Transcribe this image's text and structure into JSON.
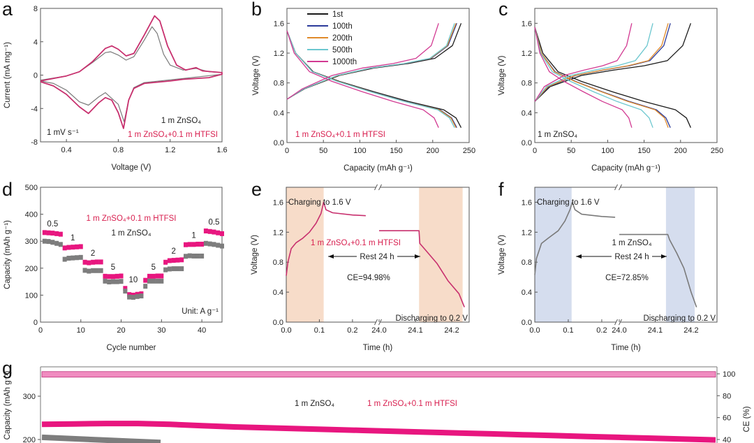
{
  "colors": {
    "htfsi_text": "#d81f4f",
    "htfsi_line": "#c8306e",
    "znso4_line": "#7a7a7a",
    "magenta": "#e8167f",
    "gray_marker": "#7d7d7d",
    "charge_shade_e": "#f7dcc9",
    "charge_shade_f": "#d5ddee"
  },
  "chart_data": [
    {
      "panel": "a",
      "type": "line",
      "xlabel": "Voltage (V)",
      "ylabel": "Current (mA mg⁻¹)",
      "xlim": [
        0.2,
        1.6
      ],
      "ylim": [
        -8,
        8
      ],
      "xticks": [
        0.4,
        0.8,
        1.2,
        1.6
      ],
      "yticks": [
        -8,
        -4,
        0,
        4,
        8
      ],
      "annotations": [
        "1 mV s⁻¹",
        "1 m ZnSO₄",
        "1 m ZnSO₄+0.1 m HTFSI"
      ],
      "series": [
        {
          "name": "1 m ZnSO₄",
          "color": "#7a7a7a",
          "points": [
            [
              0.2,
              -0.6
            ],
            [
              0.4,
              -0.1
            ],
            [
              0.5,
              0.4
            ],
            [
              0.6,
              1.5
            ],
            [
              0.7,
              2.7
            ],
            [
              0.74,
              2.8
            ],
            [
              0.8,
              2.4
            ],
            [
              0.86,
              1.8
            ],
            [
              0.92,
              2.2
            ],
            [
              1.0,
              4.2
            ],
            [
              1.06,
              5.8
            ],
            [
              1.1,
              5.0
            ],
            [
              1.15,
              2.5
            ],
            [
              1.2,
              1.2
            ],
            [
              1.3,
              0.6
            ],
            [
              1.4,
              0.8
            ],
            [
              1.5,
              0.4
            ],
            [
              1.6,
              0.3
            ],
            [
              1.6,
              0.1
            ],
            [
              1.3,
              -0.4
            ],
            [
              1.0,
              -0.9
            ],
            [
              0.92,
              -1.5
            ],
            [
              0.88,
              -3.0
            ],
            [
              0.845,
              -5.6
            ],
            [
              0.8,
              -3.5
            ],
            [
              0.7,
              -2.1
            ],
            [
              0.65,
              -2.6
            ],
            [
              0.57,
              -3.6
            ],
            [
              0.5,
              -3.2
            ],
            [
              0.4,
              -1.8
            ],
            [
              0.3,
              -1.0
            ],
            [
              0.2,
              -0.7
            ]
          ]
        },
        {
          "name": "1 m ZnSO₄+0.1 m HTFSI",
          "color": "#c8306e",
          "points": [
            [
              0.2,
              -0.7
            ],
            [
              0.3,
              -0.4
            ],
            [
              0.4,
              -0.1
            ],
            [
              0.5,
              0.4
            ],
            [
              0.6,
              1.6
            ],
            [
              0.7,
              3.2
            ],
            [
              0.75,
              3.5
            ],
            [
              0.8,
              3.1
            ],
            [
              0.86,
              2.3
            ],
            [
              0.92,
              2.6
            ],
            [
              1.0,
              4.8
            ],
            [
              1.08,
              7.1
            ],
            [
              1.12,
              6.5
            ],
            [
              1.18,
              3.5
            ],
            [
              1.25,
              1.2
            ],
            [
              1.32,
              0.6
            ],
            [
              1.4,
              0.9
            ],
            [
              1.45,
              0.5
            ],
            [
              1.6,
              0.3
            ],
            [
              1.6,
              0.1
            ],
            [
              1.5,
              -0.3
            ],
            [
              1.3,
              -0.5
            ],
            [
              1.2,
              -0.7
            ],
            [
              1.0,
              -1.0
            ],
            [
              0.92,
              -1.6
            ],
            [
              0.88,
              -3.0
            ],
            [
              0.84,
              -6.4
            ],
            [
              0.8,
              -4.5
            ],
            [
              0.75,
              -3.0
            ],
            [
              0.7,
              -2.7
            ],
            [
              0.65,
              -3.3
            ],
            [
              0.57,
              -4.6
            ],
            [
              0.5,
              -3.8
            ],
            [
              0.4,
              -2.3
            ],
            [
              0.3,
              -1.3
            ],
            [
              0.2,
              -0.8
            ]
          ]
        }
      ]
    },
    {
      "panel": "b",
      "type": "line",
      "xlabel": "Capacity (mAh g⁻¹)",
      "ylabel": "Voltage (V)",
      "xlim": [
        0,
        250
      ],
      "ylim": [
        0,
        1.8
      ],
      "xticks": [
        0,
        50,
        100,
        150,
        200,
        250
      ],
      "yticks": [
        0.0,
        0.4,
        0.8,
        1.2,
        1.6
      ],
      "legend": "top-left",
      "annotations": [
        "1 m ZnSO₄+0.1 m HTFSI"
      ],
      "charge_voltages": [
        0.58,
        0.72,
        0.9,
        1.0,
        1.06,
        1.13,
        1.3,
        1.6
      ],
      "discharge_voltages": [
        1.5,
        1.2,
        0.95,
        0.82,
        0.68,
        0.55,
        0.44,
        0.33,
        0.2
      ],
      "series": [
        {
          "name": "1st",
          "color": "#1a1a1a",
          "charge_x": [
            0,
            24,
            72,
            120,
            167,
            203,
            227,
            239
          ],
          "discharge_x": [
            0,
            12,
            36,
            72,
            120,
            167,
            215,
            232,
            239
          ]
        },
        {
          "name": "100th",
          "color": "#2b3a9a",
          "charge_x": [
            0,
            23,
            70,
            117,
            163,
            198,
            221,
            233
          ],
          "discharge_x": [
            0,
            12,
            35,
            70,
            117,
            163,
            210,
            226,
            233
          ]
        },
        {
          "name": "200th",
          "color": "#e08a2a",
          "charge_x": [
            0,
            23,
            70,
            116,
            162,
            197,
            220,
            232
          ],
          "discharge_x": [
            0,
            12,
            35,
            70,
            116,
            162,
            209,
            225,
            232
          ]
        },
        {
          "name": "500th",
          "color": "#6cc7cf",
          "charge_x": [
            0,
            23,
            69,
            115,
            161,
            196,
            219,
            230
          ],
          "discharge_x": [
            0,
            12,
            35,
            69,
            115,
            161,
            207,
            223,
            230
          ]
        },
        {
          "name": "1000th",
          "color": "#d23a92",
          "charge_x": [
            0,
            21,
            62,
            104,
            146,
            177,
            198,
            208
          ],
          "discharge_x": [
            0,
            10,
            31,
            62,
            104,
            146,
            187,
            202,
            208
          ]
        }
      ]
    },
    {
      "panel": "c",
      "type": "line",
      "xlabel": "Capacity (mAh g⁻¹)",
      "ylabel": "Voltage (V)",
      "xlim": [
        0,
        250
      ],
      "ylim": [
        0,
        1.8
      ],
      "xticks": [
        0,
        50,
        100,
        150,
        200,
        250
      ],
      "yticks": [
        0.0,
        0.4,
        0.8,
        1.2,
        1.6
      ],
      "annotations": [
        "1 m ZnSO₄"
      ],
      "charge_voltages": [
        0.55,
        0.75,
        0.9,
        0.97,
        1.03,
        1.1,
        1.3,
        1.6
      ],
      "discharge_voltages": [
        1.55,
        1.2,
        0.95,
        0.82,
        0.68,
        0.55,
        0.44,
        0.33,
        0.2
      ],
      "series": [
        {
          "color": "#1a1a1a",
          "charge_x": [
            0,
            21,
            64,
            107,
            150,
            182,
            203,
            214
          ],
          "discharge_x": [
            0,
            11,
            32,
            64,
            107,
            150,
            193,
            208,
            214
          ]
        },
        {
          "color": "#2b3a9a",
          "charge_x": [
            0,
            19,
            56,
            93,
            130,
            158,
            177,
            186
          ],
          "discharge_x": [
            0,
            9,
            28,
            56,
            93,
            130,
            167,
            180,
            186
          ]
        },
        {
          "color": "#e08a2a",
          "charge_x": [
            0,
            18,
            55,
            92,
            128,
            156,
            174,
            183
          ],
          "discharge_x": [
            0,
            9,
            27,
            55,
            92,
            128,
            165,
            178,
            183
          ]
        },
        {
          "color": "#6cc7cf",
          "charge_x": [
            0,
            16,
            49,
            81,
            113,
            138,
            154,
            162
          ],
          "discharge_x": [
            0,
            8,
            24,
            49,
            81,
            113,
            146,
            157,
            162
          ]
        },
        {
          "color": "#d23a92",
          "charge_x": [
            0,
            13,
            40,
            67,
            93,
            113,
            126,
            133
          ],
          "discharge_x": [
            0,
            7,
            20,
            40,
            67,
            93,
            120,
            129,
            133
          ]
        }
      ]
    },
    {
      "panel": "d",
      "type": "scatter",
      "xlabel": "Cycle number",
      "ylabel": "Capacity (mAh g⁻¹)",
      "xlim": [
        0,
        45
      ],
      "ylim": [
        0,
        500
      ],
      "xticks": [
        0,
        10,
        20,
        30,
        40
      ],
      "yticks": [
        0,
        100,
        200,
        300,
        400,
        500
      ],
      "annotations": [
        "1 m ZnSO₄+0.1 m HTFSI",
        "1 m ZnSO₄",
        "Unit: A g⁻¹"
      ],
      "rate_labels": [
        "0.5",
        "1",
        "2",
        "5",
        "10",
        "5",
        "2",
        "1",
        "0.5"
      ],
      "series": [
        {
          "name": "1 m ZnSO₄+0.1 m HTFSI",
          "color": "#e8167f",
          "values": [
            332,
            331,
            330,
            328,
            326,
            275,
            277,
            278,
            279,
            280,
            222,
            220,
            222,
            223,
            223,
            170,
            169,
            169,
            170,
            171,
            125,
            102,
            100,
            103,
            105,
            155,
            170,
            170,
            171,
            171,
            222,
            228,
            229,
            230,
            231,
            287,
            288,
            288,
            289,
            289,
            338,
            336,
            334,
            331,
            328
          ]
        },
        {
          "name": "1 m ZnSO₄",
          "color": "#7d7d7d",
          "values": [
            300,
            299,
            296,
            292,
            288,
            233,
            237,
            238,
            239,
            240,
            192,
            189,
            191,
            191,
            191,
            152,
            149,
            150,
            150,
            151,
            115,
            93,
            92,
            95,
            97,
            133,
            152,
            152,
            152,
            152,
            194,
            197,
            198,
            198,
            198,
            244,
            246,
            245,
            245,
            245,
            292,
            290,
            288,
            285,
            282
          ]
        }
      ]
    },
    {
      "panel": "e",
      "type": "line",
      "xlabel": "Time (h)",
      "ylabel": "Voltage (V)",
      "ylim": [
        0,
        1.8
      ],
      "yticks": [
        0.0,
        0.4,
        0.8,
        1.2,
        1.6
      ],
      "xlim_segments": [
        [
          0,
          0.274
        ],
        [
          24.0,
          24.248
        ]
      ],
      "xtick_labels": [
        "0.0",
        "0.1",
        "0.2",
        "24.0",
        "24.1",
        "24.2"
      ],
      "annotations": {
        "charge": "Charging to 1.6 V",
        "electrolyte": "1 m ZnSO₄+0.1 m HTFSI",
        "rest": "Rest 24 h",
        "ce": "CE=94.98%",
        "discharge": "Discharging to 0.2 V"
      },
      "shaded_ranges": [
        [
          0,
          0.113
        ],
        [
          24.11,
          24.23
        ]
      ],
      "color": "#c8306e",
      "rest_segment": [
        [
          0,
          0.62
        ],
        [
          0.005,
          0.8
        ],
        [
          0.015,
          0.98
        ],
        [
          0.03,
          1.06
        ],
        [
          0.05,
          1.12
        ],
        [
          0.07,
          1.2
        ],
        [
          0.09,
          1.32
        ],
        [
          0.105,
          1.45
        ],
        [
          0.113,
          1.6
        ],
        [
          0.12,
          1.5
        ],
        [
          0.14,
          1.46
        ],
        [
          0.2,
          1.43
        ],
        [
          0.24,
          1.42
        ]
      ],
      "discharge_segment": [
        [
          24.0,
          1.22
        ],
        [
          24.11,
          1.22
        ],
        [
          24.112,
          1.05
        ],
        [
          24.13,
          0.95
        ],
        [
          24.16,
          0.78
        ],
        [
          24.19,
          0.55
        ],
        [
          24.22,
          0.38
        ],
        [
          24.235,
          0.2
        ]
      ]
    },
    {
      "panel": "f",
      "type": "line",
      "xlabel": "Time (h)",
      "ylabel": "Voltage (V)",
      "ylim": [
        0,
        1.8
      ],
      "yticks": [
        0.0,
        0.4,
        0.8,
        1.2,
        1.6
      ],
      "xlim_segments": [
        [
          0,
          0.246
        ],
        [
          24.0,
          24.272
        ]
      ],
      "xtick_labels": [
        "0.0",
        "0.1",
        "0.2",
        "24.0",
        "24.1",
        "24.2"
      ],
      "annotations": {
        "charge": "Charging to 1.6 V",
        "electrolyte": "1 m ZnSO₄",
        "rest": "Rest 24 h",
        "ce": "CE=72.85%",
        "discharge": "Discharging to 0.2 V"
      },
      "shaded_ranges": [
        [
          0,
          0.11
        ],
        [
          24.13,
          24.21
        ]
      ],
      "color": "#7a7a7a",
      "rest_segment": [
        [
          0,
          0.63
        ],
        [
          0.005,
          0.85
        ],
        [
          0.02,
          1.05
        ],
        [
          0.04,
          1.12
        ],
        [
          0.07,
          1.22
        ],
        [
          0.09,
          1.35
        ],
        [
          0.105,
          1.5
        ],
        [
          0.112,
          1.6
        ],
        [
          0.12,
          1.5
        ],
        [
          0.14,
          1.44
        ],
        [
          0.2,
          1.41
        ],
        [
          0.24,
          1.4
        ]
      ],
      "discharge_segment": [
        [
          24.0,
          1.17
        ],
        [
          24.135,
          1.17
        ],
        [
          24.14,
          1.1
        ],
        [
          24.16,
          0.92
        ],
        [
          24.18,
          0.72
        ],
        [
          24.2,
          0.4
        ],
        [
          24.215,
          0.2
        ]
      ]
    },
    {
      "panel": "g",
      "type": "scatter",
      "ylabel": "Capacity (mAh g⁻¹)",
      "y2label": "CE (%)",
      "yticks": [
        200,
        300
      ],
      "y2ticks": [
        40,
        60,
        80,
        100
      ],
      "annotations": [
        "1 m ZnSO₄",
        "1 m ZnSO₄+0.1 m HTFSI"
      ],
      "series": [
        {
          "name": "1 m ZnSO₄+0.1 m HTFSI",
          "color": "#e8167f",
          "axis": "capacity",
          "values": [
            235,
            236,
            237,
            237,
            235,
            232,
            229,
            227,
            225,
            223,
            221,
            219,
            217,
            215,
            213,
            211,
            209,
            207,
            205,
            203,
            201,
            199
          ]
        },
        {
          "name": "1 m ZnSO₄",
          "color": "#7d7d7d",
          "axis": "capacity",
          "values": [
            205,
            202,
            199,
            196,
            193
          ]
        },
        {
          "name": "CE",
          "color": "#f08cc0",
          "axis": "CE",
          "values": [
            99.5,
            99.5
          ]
        }
      ]
    }
  ],
  "panel_letters": [
    "a",
    "b",
    "c",
    "d",
    "e",
    "f",
    "g"
  ]
}
